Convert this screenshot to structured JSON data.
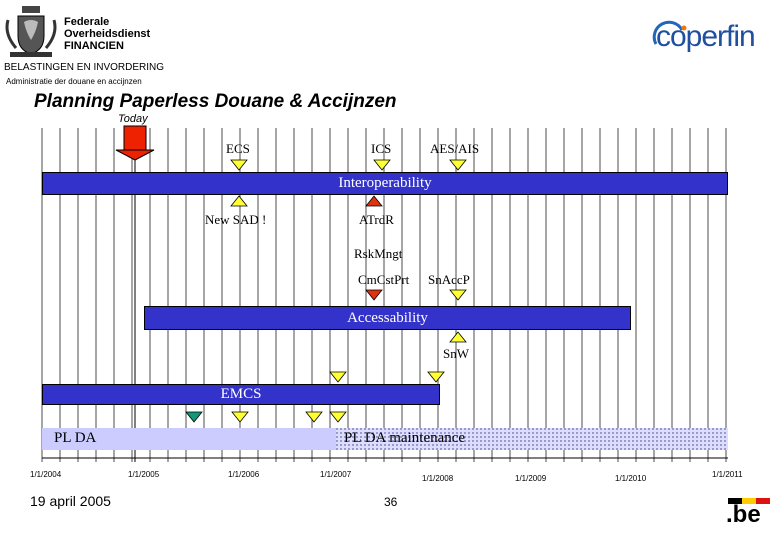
{
  "header": {
    "org_line1": "Federale",
    "org_line2": "Overheidsdienst",
    "org_line3": "FINANCIEN",
    "brand": "coperfin",
    "department": "BELASTINGEN EN INVORDERING",
    "administration": "Administratie der douane en accijnzen",
    "title": "Planning Paperless Douane & Accijnzen"
  },
  "timeline": {
    "today_label": "Today",
    "dates": [
      "1/1/2004",
      "1/1/2005",
      "1/1/2006",
      "1/1/2007",
      "1/1/2008",
      "1/1/2009",
      "1/1/2010",
      "1/1/2011"
    ]
  },
  "milestones": {
    "ecs": "ECS",
    "ics": "ICS",
    "aes_ais": "AES/AIS",
    "new_sad": "New SAD !",
    "atrdr": "ATrdR",
    "rskmngt": "RskMngt",
    "cmcstprt": "CmCstPrt",
    "snaccp": "SnAccP",
    "snw": "SnW"
  },
  "bars": {
    "interoperability": "Interoperability",
    "accessability": "Accessability",
    "emcs": "EMCS",
    "plda": "PL DA",
    "plda_maintenance": "PL DA maintenance"
  },
  "footer": {
    "date": "19 april 2005",
    "page": "36",
    "be_logo": ".be"
  },
  "colors": {
    "bar_blue": "#3333cc",
    "yellow_marker": "#ffff33",
    "red_marker": "#dd3311",
    "green_marker": "#119977",
    "light_band": "#ccccff",
    "today_arrow": "#ee2200"
  }
}
